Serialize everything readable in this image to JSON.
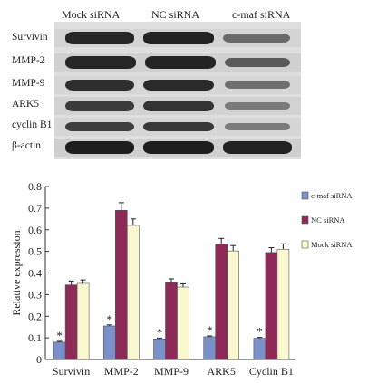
{
  "blot": {
    "columns": [
      "Mock siRNA",
      "NC siRNA",
      "c-maf siRNA"
    ],
    "rows": [
      "Survivin",
      "MMP-2",
      "MMP-9",
      "ARK5",
      "cyclin B1",
      "β-actin"
    ]
  },
  "chart_data": {
    "type": "bar",
    "categories": [
      "Survivin",
      "MMP-2",
      "MMP-9",
      "ARK5",
      "Cyclin B1"
    ],
    "ylabel": "Relative expression",
    "ylim": [
      0,
      0.8
    ],
    "yticks": [
      "0",
      "0.1",
      "0.2",
      "0.3",
      "0.4",
      "0.5",
      "0.6",
      "0.7",
      "0.8"
    ],
    "series": [
      {
        "name": "c-maf siRNA",
        "color": "#7b8fc9",
        "values": [
          0.08,
          0.155,
          0.095,
          0.105,
          0.098
        ],
        "errors": [
          0.004,
          0.005,
          0.004,
          0.004,
          0.004
        ]
      },
      {
        "name": "NC siRNA",
        "color": "#8e2a58",
        "values": [
          0.345,
          0.69,
          0.355,
          0.535,
          0.495
        ],
        "errors": [
          0.018,
          0.035,
          0.018,
          0.025,
          0.022
        ]
      },
      {
        "name": "Mock siRNA",
        "color": "#fbf8cf",
        "values": [
          0.352,
          0.62,
          0.335,
          0.502,
          0.51
        ],
        "errors": [
          0.016,
          0.03,
          0.015,
          0.025,
          0.025
        ]
      }
    ],
    "significance_marker": "*",
    "legend_position": "right"
  }
}
